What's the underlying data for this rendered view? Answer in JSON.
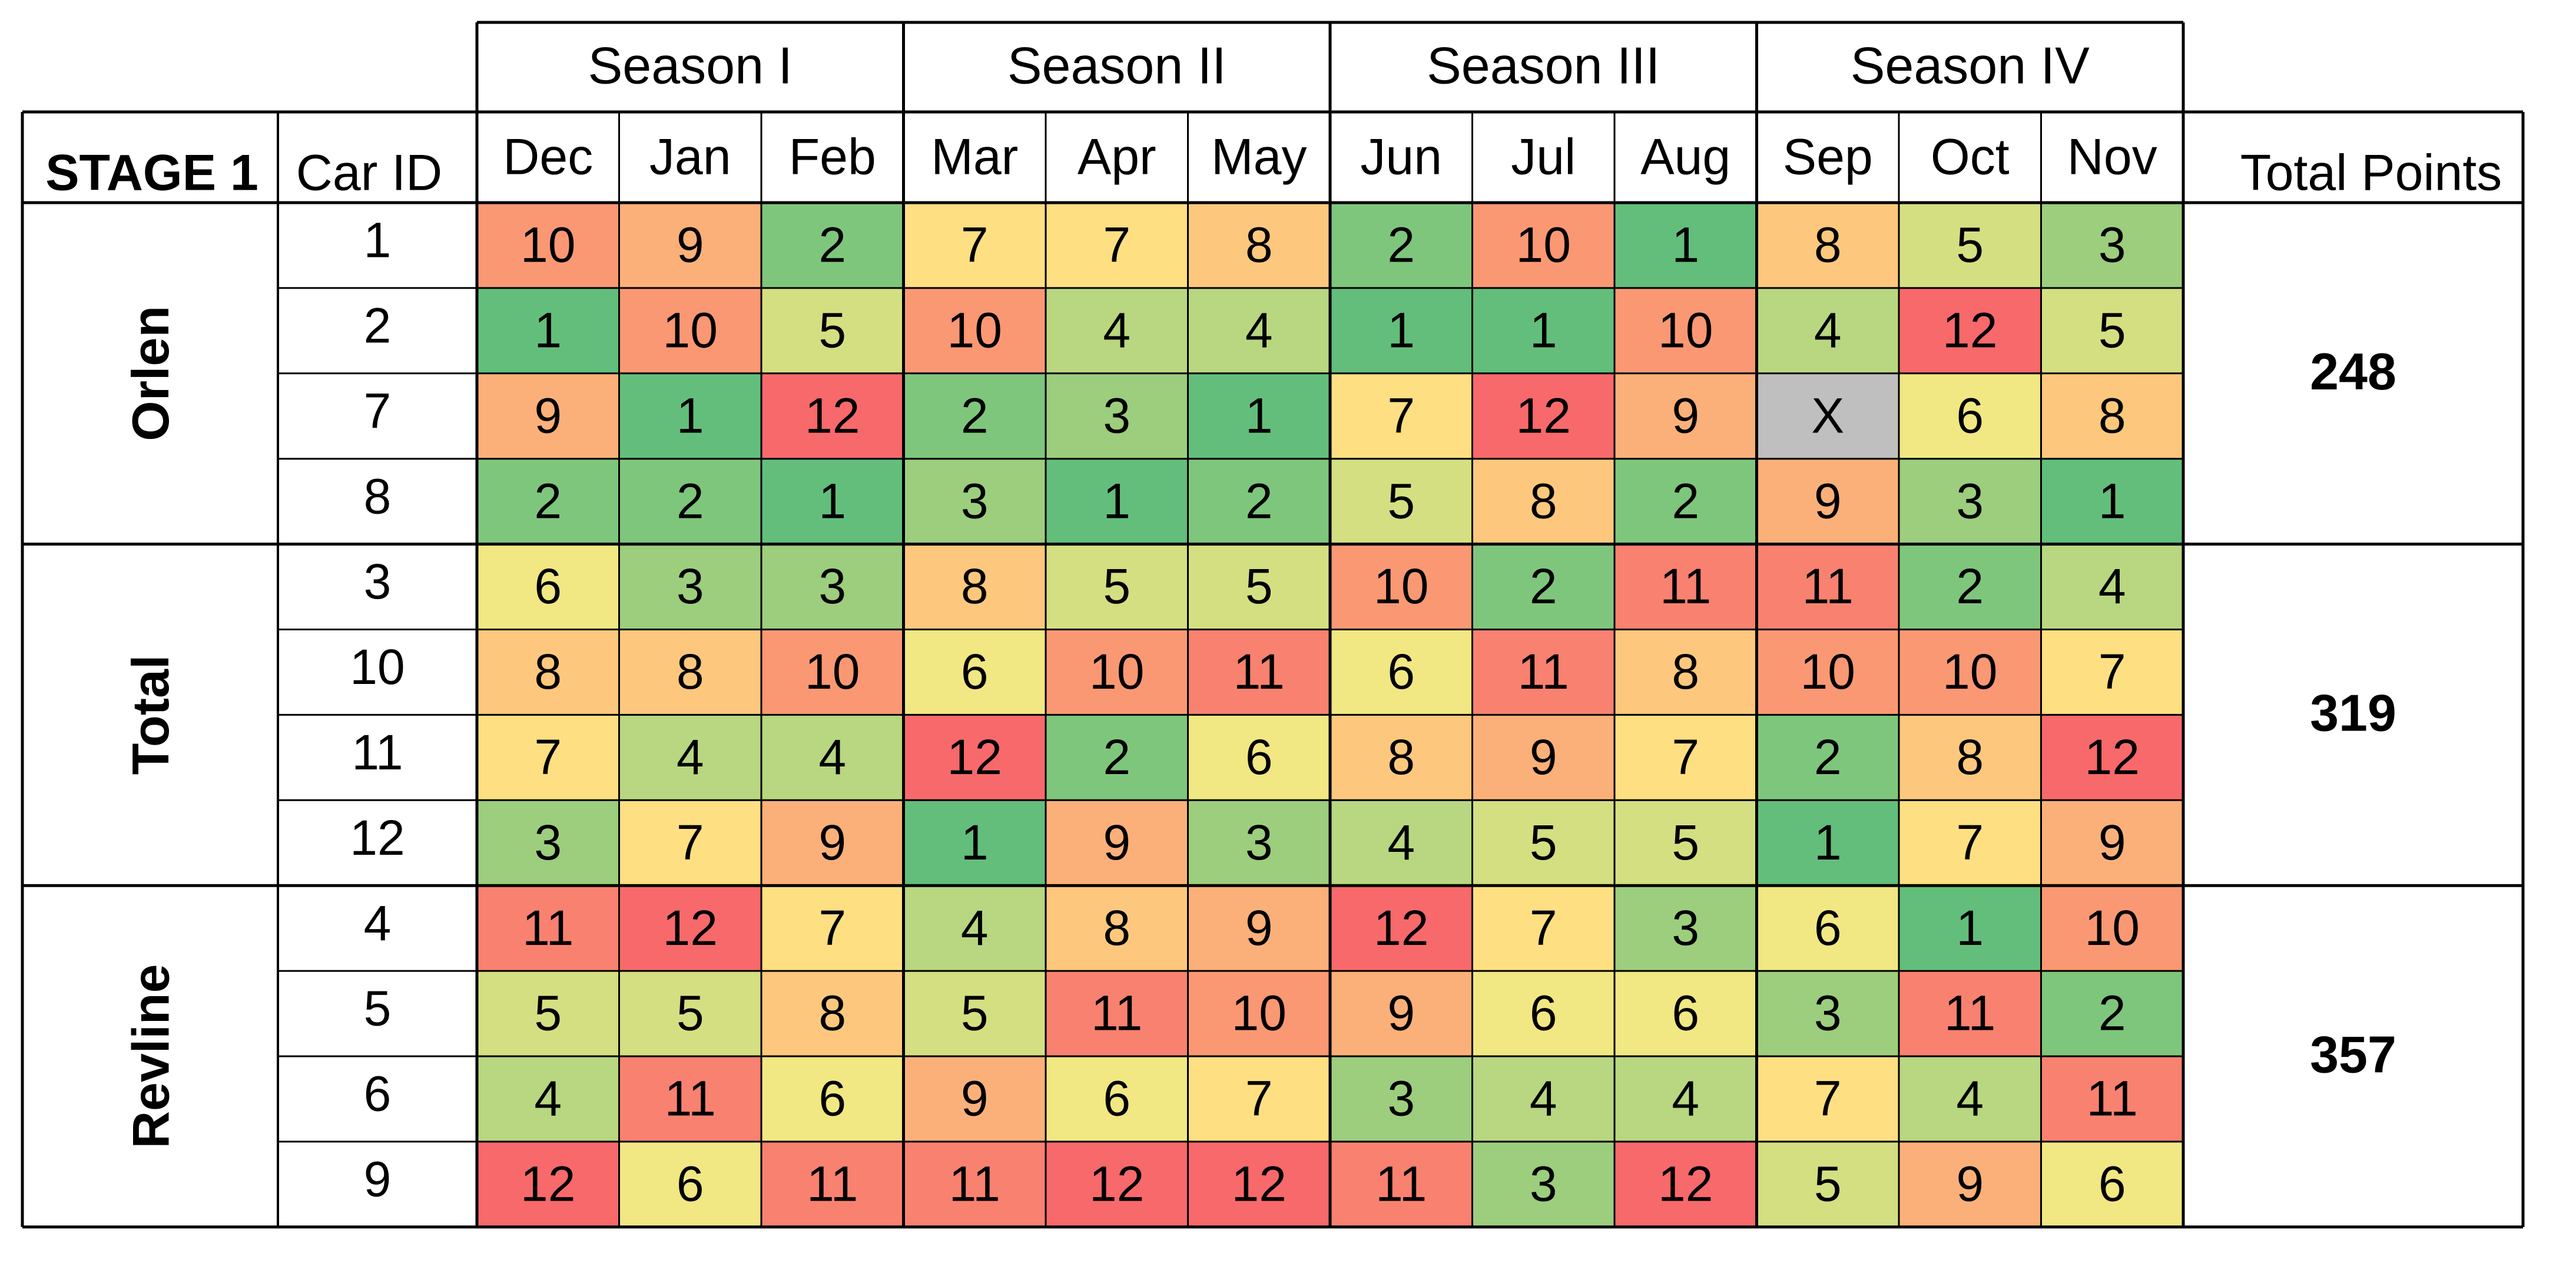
{
  "chart_data": {
    "type": "heatmap",
    "corner_label": "STAGE 1",
    "car_id_label": "Car ID",
    "total_label": "Total Points",
    "seasons": [
      {
        "name": "Season I",
        "months": [
          "Dec",
          "Jan",
          "Feb"
        ]
      },
      {
        "name": "Season II",
        "months": [
          "Mar",
          "Apr",
          "May"
        ]
      },
      {
        "name": "Season III",
        "months": [
          "Jun",
          "Jul",
          "Aug"
        ]
      },
      {
        "name": "Season IV",
        "months": [
          "Sep",
          "Oct",
          "Nov"
        ]
      }
    ],
    "teams": [
      {
        "name": "Orlen",
        "total": "248",
        "cars": [
          {
            "id": "1",
            "values": [
              "10",
              "9",
              "2",
              "7",
              "7",
              "8",
              "2",
              "10",
              "1",
              "8",
              "5",
              "3"
            ]
          },
          {
            "id": "2",
            "values": [
              "1",
              "10",
              "5",
              "10",
              "4",
              "4",
              "1",
              "1",
              "10",
              "4",
              "12",
              "5"
            ]
          },
          {
            "id": "7",
            "values": [
              "9",
              "1",
              "12",
              "2",
              "3",
              "1",
              "7",
              "12",
              "9",
              "X",
              "6",
              "8"
            ]
          },
          {
            "id": "8",
            "values": [
              "2",
              "2",
              "1",
              "3",
              "1",
              "2",
              "5",
              "8",
              "2",
              "9",
              "3",
              "1"
            ]
          }
        ]
      },
      {
        "name": "Total",
        "total": "319",
        "cars": [
          {
            "id": "3",
            "values": [
              "6",
              "3",
              "3",
              "8",
              "5",
              "5",
              "10",
              "2",
              "11",
              "11",
              "2",
              "4"
            ]
          },
          {
            "id": "10",
            "values": [
              "8",
              "8",
              "10",
              "6",
              "10",
              "11",
              "6",
              "11",
              "8",
              "10",
              "10",
              "7"
            ]
          },
          {
            "id": "11",
            "values": [
              "7",
              "4",
              "4",
              "12",
              "2",
              "6",
              "8",
              "9",
              "7",
              "2",
              "8",
              "12"
            ]
          },
          {
            "id": "12",
            "values": [
              "3",
              "7",
              "9",
              "1",
              "9",
              "3",
              "4",
              "5",
              "5",
              "1",
              "7",
              "9"
            ]
          }
        ]
      },
      {
        "name": "Revline",
        "total": "357",
        "cars": [
          {
            "id": "4",
            "values": [
              "11",
              "12",
              "7",
              "4",
              "8",
              "9",
              "12",
              "7",
              "3",
              "6",
              "1",
              "10"
            ]
          },
          {
            "id": "5",
            "values": [
              "5",
              "5",
              "8",
              "5",
              "11",
              "10",
              "9",
              "6",
              "6",
              "3",
              "11",
              "2"
            ]
          },
          {
            "id": "6",
            "values": [
              "4",
              "11",
              "6",
              "9",
              "6",
              "7",
              "3",
              "4",
              "4",
              "7",
              "4",
              "11"
            ]
          },
          {
            "id": "9",
            "values": [
              "12",
              "6",
              "11",
              "11",
              "12",
              "12",
              "11",
              "3",
              "12",
              "5",
              "9",
              "6"
            ]
          }
        ]
      }
    ],
    "color_scale": {
      "low": "#63be7b",
      "mid": "#ffeb84",
      "high": "#f8696b",
      "missing": "#bfbfbf"
    }
  }
}
